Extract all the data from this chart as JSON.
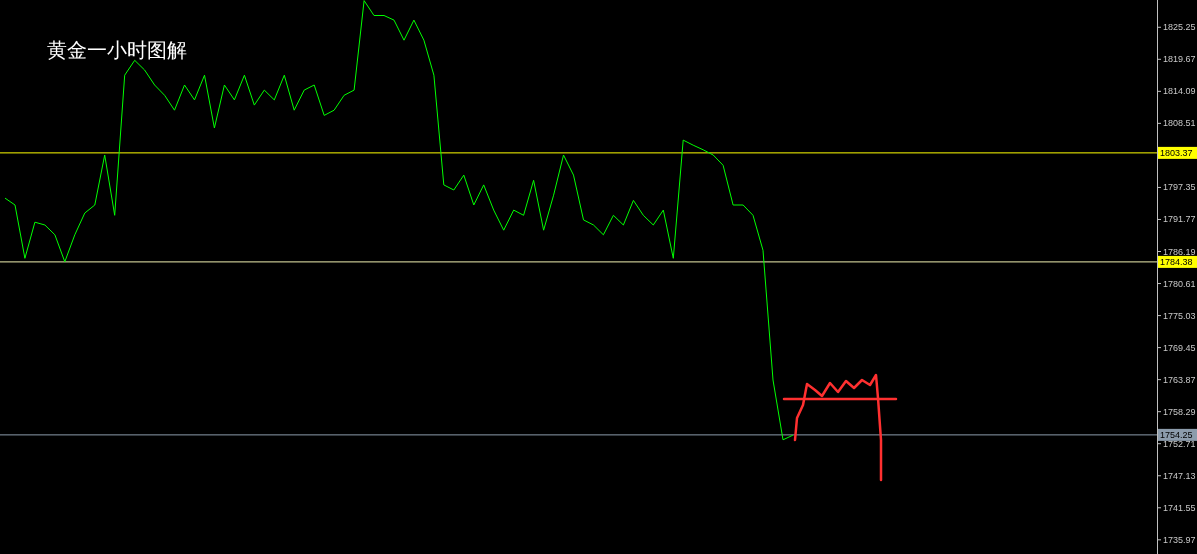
{
  "chart_data": {
    "type": "line",
    "title": "黄金一小时图解",
    "categories": [
      null,
      null,
      null,
      null,
      null,
      null,
      null,
      null,
      null,
      null,
      null,
      null,
      null,
      null,
      null,
      null,
      null,
      null,
      null,
      null,
      null,
      null,
      null,
      null,
      null,
      null,
      null,
      null,
      null,
      null,
      null,
      null,
      null,
      null,
      null,
      null,
      null,
      null,
      null,
      null,
      null,
      null,
      null,
      null,
      null,
      null,
      null,
      null,
      null,
      null,
      null,
      null,
      null,
      null,
      null,
      null,
      null,
      null,
      null,
      null,
      null,
      null,
      null,
      null,
      null,
      null,
      null,
      null,
      null,
      null,
      null,
      null,
      null,
      null,
      null,
      null,
      null,
      null,
      null,
      null,
      null,
      null,
      null,
      null,
      null,
      null,
      null,
      null,
      null,
      null,
      null,
      null,
      null,
      null,
      null,
      null,
      null,
      null,
      null,
      null,
      null,
      null,
      null,
      null,
      null,
      null,
      null,
      null,
      null,
      null,
      null,
      null,
      null,
      null,
      null,
      null
    ],
    "series": [
      {
        "color": "#00ff00",
        "values": [
          1795.5,
          1794.3,
          1785.0,
          1791.3,
          1790.8,
          1789.1,
          1784.4,
          1789.1,
          1792.9,
          1794.3,
          1803.0,
          1792.5,
          1816.9,
          1819.5,
          1817.8,
          1815.2,
          1813.4,
          1810.8,
          1815.2,
          1812.6,
          1816.9,
          1807.7,
          1815.2,
          1812.6,
          1816.9,
          1811.7,
          1814.3,
          1812.6,
          1816.9,
          1810.8,
          1814.3,
          1815.2,
          1809.9,
          1810.8,
          1813.4,
          1814.3,
          1829.9,
          1827.3,
          1827.3,
          1826.5,
          1823.0,
          1826.5,
          1823.0,
          1816.9,
          1797.8,
          1796.9,
          1799.5,
          1794.3,
          1797.8,
          1793.4,
          1789.9,
          1793.4,
          1792.5,
          1798.6,
          1789.9,
          1796.0,
          1803.0,
          1799.5,
          1791.7,
          1790.8,
          1789.1,
          1792.5,
          1790.8,
          1795.1,
          1792.5,
          1790.8,
          1793.4,
          1785.0,
          1805.6,
          1804.7,
          1803.9,
          1803.0,
          1801.2,
          1794.3,
          1794.3,
          1792.5,
          1786.4,
          1763.8,
          1753.4,
          1754.2,
          null,
          null,
          null,
          null,
          null,
          null,
          null,
          null,
          null,
          null,
          null,
          null,
          null,
          null,
          null,
          null,
          null,
          null,
          null,
          null,
          null,
          null,
          null,
          null,
          null,
          null,
          null,
          null,
          null,
          null,
          null,
          null,
          null,
          null,
          null,
          null
        ]
      }
    ],
    "ylim": [
      1733.5,
      1830
    ],
    "yticks": [
      1825.25,
      1819.67,
      1814.09,
      1808.51,
      1797.35,
      1791.77,
      1786.19,
      1780.61,
      1775.03,
      1769.45,
      1763.87,
      1758.29,
      1752.71,
      1747.13,
      1741.55,
      1735.97
    ],
    "ref_lines": [
      {
        "axis": "y",
        "value": 1803.37,
        "label": "1803.37",
        "color": "#ffff00"
      },
      {
        "axis": "y",
        "value": 1784.38,
        "label": "1784.38",
        "color": "#f0f0b0"
      },
      {
        "axis": "y",
        "value": 1754.25,
        "label": "1754.25",
        "color": "#8c9cac"
      }
    ],
    "tick_labels": "y"
  }
}
